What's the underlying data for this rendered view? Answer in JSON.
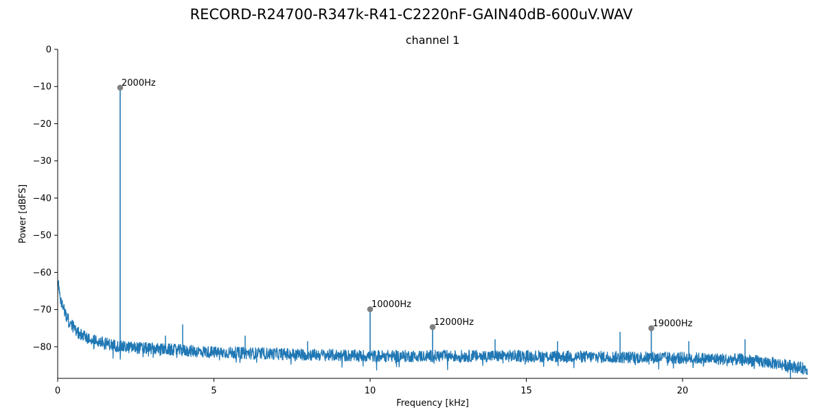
{
  "figure": {
    "title": "RECORD-R24700-R347k-R41-C2220nF-GAIN40dB-600uV.WAV"
  },
  "chart_data": {
    "type": "line",
    "title": "channel 1",
    "xlabel": "Frequency [kHz]",
    "ylabel": "Power [dBFS]",
    "xlim": [
      0,
      24
    ],
    "ylim": [
      -88.5,
      0
    ],
    "xticks": [
      0,
      5,
      10,
      15,
      20
    ],
    "yticks": [
      0,
      -10,
      -20,
      -30,
      -40,
      -50,
      -60,
      -70,
      -80
    ],
    "xtick_labels": [
      "0",
      "5",
      "10",
      "15",
      "20"
    ],
    "ytick_labels": [
      "0",
      "−10",
      "−20",
      "−30",
      "−40",
      "−50",
      "−60",
      "−70",
      "−80"
    ],
    "grid": false,
    "legend": "none",
    "colors": {
      "spectrum": "#1f77b4",
      "peak_marker": "#808080",
      "axes": "#000000"
    },
    "noise_floor": [
      {
        "x": 0.0,
        "y": -62
      },
      {
        "x": 0.1,
        "y": -68
      },
      {
        "x": 0.3,
        "y": -72
      },
      {
        "x": 0.6,
        "y": -76
      },
      {
        "x": 1.0,
        "y": -78
      },
      {
        "x": 2.0,
        "y": -80
      },
      {
        "x": 5.0,
        "y": -81.5
      },
      {
        "x": 10.0,
        "y": -82.5
      },
      {
        "x": 15.0,
        "y": -82.5
      },
      {
        "x": 20.0,
        "y": -83
      },
      {
        "x": 22.0,
        "y": -83.5
      },
      {
        "x": 23.0,
        "y": -84.5
      },
      {
        "x": 24.0,
        "y": -86
      }
    ],
    "spurs": [
      {
        "x": 3.45,
        "y": -77
      },
      {
        "x": 4.0,
        "y": -74
      },
      {
        "x": 6.0,
        "y": -77
      },
      {
        "x": 8.0,
        "y": -78.5
      },
      {
        "x": 14.0,
        "y": -78
      },
      {
        "x": 16.0,
        "y": -78.5
      },
      {
        "x": 18.0,
        "y": -76
      },
      {
        "x": 20.2,
        "y": -78.5
      },
      {
        "x": 22.0,
        "y": -78
      }
    ],
    "peaks": [
      {
        "x": 2.0,
        "y": -10.3,
        "label": "2000Hz"
      },
      {
        "x": 10.0,
        "y": -69.9,
        "label": "10000Hz"
      },
      {
        "x": 12.0,
        "y": -74.7,
        "label": "12000Hz"
      },
      {
        "x": 19.0,
        "y": -75.0,
        "label": "19000Hz"
      }
    ]
  }
}
